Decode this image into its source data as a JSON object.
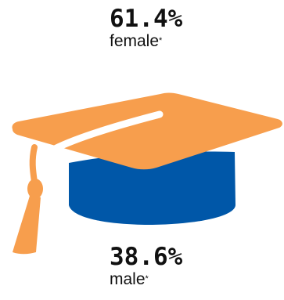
{
  "female": {
    "percent": "61.4%",
    "label": "female",
    "note_mark": "*"
  },
  "male": {
    "percent": "38.6%",
    "label": "male",
    "note_mark": "*"
  },
  "colors": {
    "cap_top": "#F79E4D",
    "cap_band": "#0057A8",
    "tassel": "#F79E4D",
    "text": "#111111"
  },
  "icons": {
    "graduation_cap": "graduation-cap-icon"
  }
}
